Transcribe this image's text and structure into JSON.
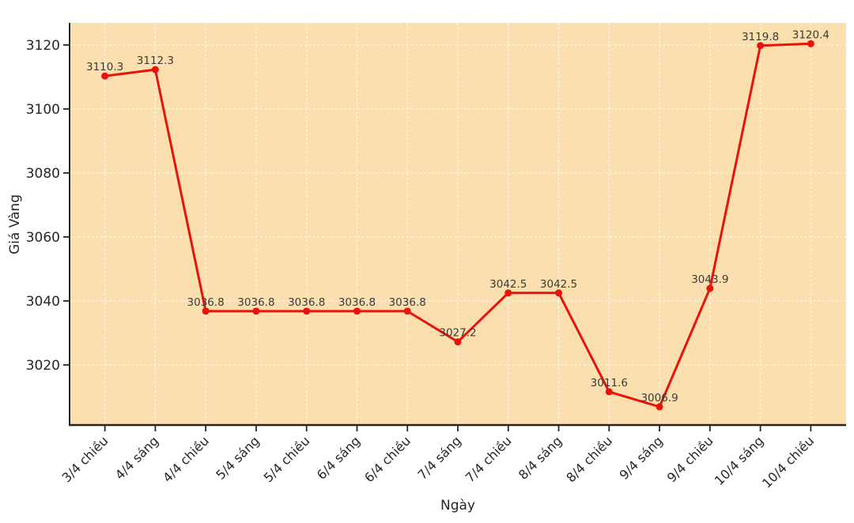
{
  "figure": {
    "background": "#ffffff",
    "plot_background": "#fbdfae",
    "grid_color": "#ffffff",
    "line_color": "#e8130a",
    "marker_color": "#e8130a",
    "axis_color": "#262626",
    "tick_label_color": "#262626",
    "annotation_color": "#3a3a3a"
  },
  "chart_data": {
    "type": "line",
    "title": "",
    "xlabel": "Ngày",
    "ylabel": "Giá Vàng",
    "categories": [
      "3/4 chiều",
      "4/4 sáng",
      "4/4 chiều",
      "5/4 sáng",
      "5/4 chiều",
      "6/4 sáng",
      "6/4 chiều",
      "7/4 sáng",
      "7/4 chiều",
      "8/4 sáng",
      "8/4 chiều",
      "9/4 sáng",
      "9/4 chiều",
      "10/4 sáng",
      "10/4 chiều"
    ],
    "series": [
      {
        "name": "Giá Vàng",
        "values": [
          3110.3,
          3112.3,
          3036.8,
          3036.8,
          3036.8,
          3036.8,
          3036.8,
          3027.2,
          3042.5,
          3042.5,
          3011.6,
          3006.9,
          3043.9,
          3119.8,
          3120.4
        ]
      }
    ],
    "point_labels": [
      "3110.3",
      "3112.3",
      "3036.8",
      "3036.8",
      "3036.8",
      "3036.8",
      "3036.8",
      "3027.2",
      "3042.5",
      "3042.5",
      "3011.6",
      "3006.9",
      "3043.9",
      "3119.8",
      "3120.4"
    ],
    "yticks": [
      3020,
      3040,
      3060,
      3080,
      3100,
      3120
    ],
    "ylim": [
      3001.2,
      3126.9
    ],
    "grid": true,
    "grid_style": "dashed",
    "legend_position": "none",
    "marker": "circle",
    "x_tick_rotation": 45
  }
}
